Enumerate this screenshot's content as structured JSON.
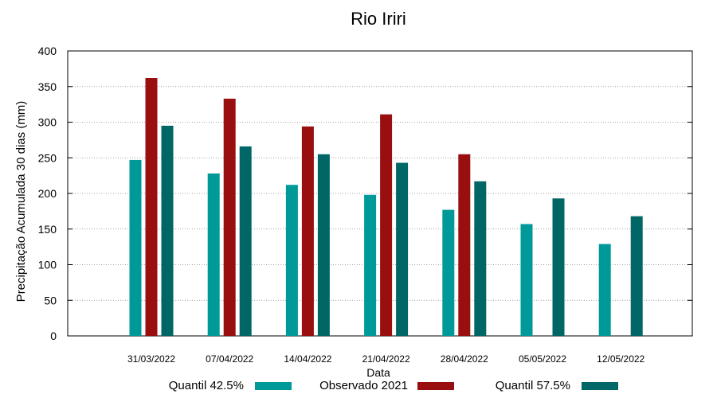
{
  "chart_data": {
    "type": "bar",
    "title": "Rio Iriri",
    "xlabel": "Data",
    "ylabel": "Precipitação Acumulada 30 dias (mm)",
    "ylim": [
      0,
      400
    ],
    "yticks": [
      0,
      50,
      100,
      150,
      200,
      250,
      300,
      350,
      400
    ],
    "grid": true,
    "legend_position": "bottom",
    "categories": [
      "31/03/2022",
      "07/04/2022",
      "14/04/2022",
      "21/04/2022",
      "28/04/2022",
      "05/05/2022",
      "12/05/2022"
    ],
    "series": [
      {
        "name": "Quantil 42.5%",
        "color": "#009999",
        "values": [
          247,
          228,
          212,
          198,
          177,
          157,
          129
        ]
      },
      {
        "name": "Observado 2021",
        "color": "#990f0f",
        "values": [
          362,
          333,
          294,
          311,
          255,
          null,
          null
        ]
      },
      {
        "name": "Quantil 57.5%",
        "color": "#006666",
        "values": [
          295,
          266,
          255,
          243,
          217,
          193,
          168
        ]
      }
    ]
  }
}
